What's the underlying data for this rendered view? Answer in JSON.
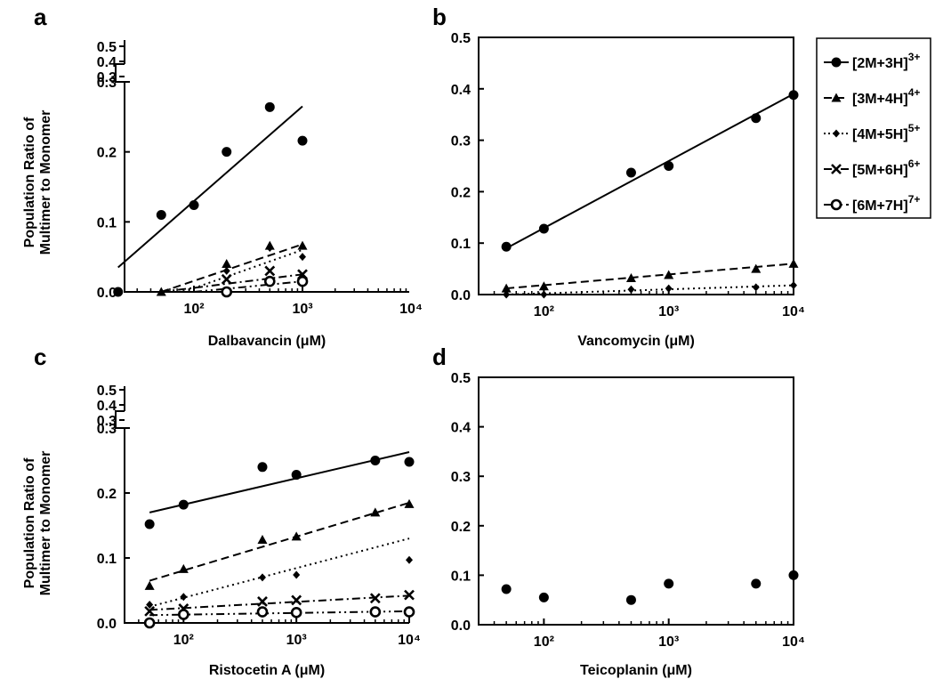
{
  "chart_data": [
    {
      "panel": "a",
      "type": "scatter",
      "xlabel": "Dalbavancin (μM)",
      "ylabel": "Population Ratio of Multimer to Monomer",
      "xscale": "log",
      "xlim": [
        10,
        10000
      ],
      "ylim": [
        0,
        0.3
      ],
      "y_break": true,
      "ytop_ticks": [
        "0.5",
        "0.4",
        "0.3"
      ],
      "yticks": [
        "0.0",
        "0.1",
        "0.2",
        "0.3"
      ],
      "xticks": [
        "10²",
        "10³",
        "10⁴"
      ],
      "series": [
        {
          "name": "[2M+3H]³⁺",
          "marker": "circle",
          "line": "solid",
          "x": [
            20,
            50,
            100,
            200,
            500,
            1000
          ],
          "y": [
            0.0,
            0.11,
            0.124,
            0.2,
            0.264,
            0.216
          ],
          "fit": [
            [
              20,
              0.035
            ],
            [
              1000,
              0.265
            ]
          ]
        },
        {
          "name": "[3M+4H]⁴⁺",
          "marker": "triangle",
          "line": "dash",
          "x": [
            50,
            200,
            500,
            1000
          ],
          "y": [
            0.0,
            0.04,
            0.066,
            0.066
          ],
          "fit": [
            [
              50,
              0.0
            ],
            [
              1000,
              0.068
            ]
          ]
        },
        {
          "name": "[4M+5H]⁵⁺",
          "marker": "diamond",
          "line": "dot",
          "x": [
            200,
            500,
            1000
          ],
          "y": [
            0.03,
            0.063,
            0.05
          ],
          "fit": [
            [
              80,
              0.0
            ],
            [
              1000,
              0.06
            ]
          ]
        },
        {
          "name": "[5M+6H]⁶⁺",
          "marker": "x",
          "line": "dashdot",
          "x": [
            200,
            500,
            1000
          ],
          "y": [
            0.018,
            0.03,
            0.025
          ],
          "fit": [
            [
              50,
              0.0
            ],
            [
              1000,
              0.025
            ]
          ]
        },
        {
          "name": "[6M+7H]⁷⁺",
          "marker": "open-circle",
          "line": "dashdotdot",
          "x": [
            200,
            500,
            1000
          ],
          "y": [
            0.0,
            0.015,
            0.015
          ],
          "fit": [
            [
              100,
              0.0
            ],
            [
              1000,
              0.015
            ]
          ]
        }
      ]
    },
    {
      "panel": "b",
      "type": "scatter",
      "xlabel": "Vancomycin (μM)",
      "ylabel": "",
      "xscale": "log",
      "xlim": [
        30,
        10000
      ],
      "ylim": [
        0,
        0.5
      ],
      "yticks": [
        "0.0",
        "0.1",
        "0.2",
        "0.3",
        "0.4",
        "0.5"
      ],
      "xticks": [
        "10²",
        "10³",
        "10⁴"
      ],
      "series": [
        {
          "name": "[2M+3H]³⁺",
          "marker": "circle",
          "line": "solid",
          "x": [
            50,
            100,
            500,
            1000,
            5000,
            10000
          ],
          "y": [
            0.093,
            0.128,
            0.237,
            0.25,
            0.343,
            0.388
          ],
          "fit": [
            [
              50,
              0.09
            ],
            [
              10000,
              0.39
            ]
          ]
        },
        {
          "name": "[3M+4H]⁴⁺",
          "marker": "triangle",
          "line": "dash",
          "x": [
            50,
            100,
            500,
            1000,
            5000,
            10000
          ],
          "y": [
            0.012,
            0.016,
            0.032,
            0.038,
            0.05,
            0.06
          ],
          "fit": [
            [
              50,
              0.012
            ],
            [
              10000,
              0.06
            ]
          ]
        },
        {
          "name": "[4M+5H]⁵⁺",
          "marker": "diamond",
          "line": "dot",
          "x": [
            50,
            100,
            500,
            1000,
            5000,
            10000
          ],
          "y": [
            0.0,
            0.0,
            0.01,
            0.012,
            0.014,
            0.018
          ],
          "fit": [
            [
              50,
              0.0
            ],
            [
              10000,
              0.018
            ]
          ]
        }
      ]
    },
    {
      "panel": "c",
      "type": "scatter",
      "xlabel": "Ristocetin A (μM)",
      "ylabel": "Population Ratio of Multimer to Monomer",
      "xscale": "log",
      "xlim": [
        30,
        10000
      ],
      "ylim": [
        0,
        0.3
      ],
      "y_break": true,
      "ytop_ticks": [
        "0.5",
        "0.4",
        "0.3"
      ],
      "yticks": [
        "0.0",
        "0.1",
        "0.2",
        "0.3"
      ],
      "xticks": [
        "10²",
        "10³",
        "10⁴"
      ],
      "series": [
        {
          "name": "[2M+3H]³⁺",
          "marker": "circle",
          "line": "solid",
          "x": [
            50,
            100,
            500,
            1000,
            5000,
            10000
          ],
          "y": [
            0.152,
            0.182,
            0.24,
            0.228,
            0.25,
            0.248
          ],
          "fit": [
            [
              50,
              0.17
            ],
            [
              10000,
              0.263
            ]
          ]
        },
        {
          "name": "[3M+4H]⁴⁺",
          "marker": "triangle",
          "line": "dash",
          "x": [
            50,
            100,
            500,
            1000,
            5000,
            10000
          ],
          "y": [
            0.057,
            0.083,
            0.128,
            0.133,
            0.17,
            0.183
          ],
          "fit": [
            [
              50,
              0.065
            ],
            [
              10000,
              0.185
            ]
          ]
        },
        {
          "name": "[4M+5H]⁵⁺",
          "marker": "diamond",
          "line": "dot",
          "x": [
            50,
            100,
            500,
            1000,
            10000
          ],
          "y": [
            0.028,
            0.04,
            0.07,
            0.074,
            0.097
          ],
          "fit": [
            [
              50,
              0.025
            ],
            [
              10000,
              0.13
            ]
          ]
        },
        {
          "name": "[5M+6H]⁶⁺",
          "marker": "x",
          "line": "dashdot",
          "x": [
            50,
            100,
            500,
            1000,
            5000,
            10000
          ],
          "y": [
            0.018,
            0.022,
            0.033,
            0.035,
            0.038,
            0.043
          ],
          "fit": [
            [
              50,
              0.02
            ],
            [
              10000,
              0.042
            ]
          ]
        },
        {
          "name": "[6M+7H]⁷⁺",
          "marker": "open-circle",
          "line": "dashdotdot",
          "x": [
            50,
            100,
            500,
            1000,
            5000,
            10000
          ],
          "y": [
            0.0,
            0.013,
            0.017,
            0.016,
            0.017,
            0.017
          ],
          "fit": [
            [
              50,
              0.012
            ],
            [
              10000,
              0.018
            ]
          ]
        }
      ]
    },
    {
      "panel": "d",
      "type": "scatter",
      "xlabel": "Teicoplanin (μM)",
      "ylabel": "",
      "xscale": "log",
      "xlim": [
        30,
        10000
      ],
      "ylim": [
        0,
        0.5
      ],
      "yticks": [
        "0.0",
        "0.1",
        "0.2",
        "0.3",
        "0.4",
        "0.5"
      ],
      "xticks": [
        "10²",
        "10³",
        "10⁴"
      ],
      "series": [
        {
          "name": "[2M+3H]³⁺",
          "marker": "circle",
          "line": "none",
          "x": [
            50,
            100,
            500,
            1000,
            5000,
            10000
          ],
          "y": [
            0.072,
            0.055,
            0.05,
            0.083,
            0.083,
            0.1
          ]
        }
      ]
    }
  ],
  "legend": [
    {
      "label": "[2M+3H]",
      "sup": "3+",
      "marker": "circle",
      "line": "solid"
    },
    {
      "label": "[3M+4H]",
      "sup": "4+",
      "marker": "triangle",
      "line": "dash"
    },
    {
      "label": "[4M+5H]",
      "sup": "5+",
      "marker": "diamond",
      "line": "dot"
    },
    {
      "label": "[5M+6H]",
      "sup": "6+",
      "marker": "x",
      "line": "dashdot"
    },
    {
      "label": "[6M+7H]",
      "sup": "7+",
      "marker": "open-circle",
      "line": "dashdotdot"
    }
  ],
  "colors": {
    "ink": "#000000",
    "background": "#ffffff"
  }
}
